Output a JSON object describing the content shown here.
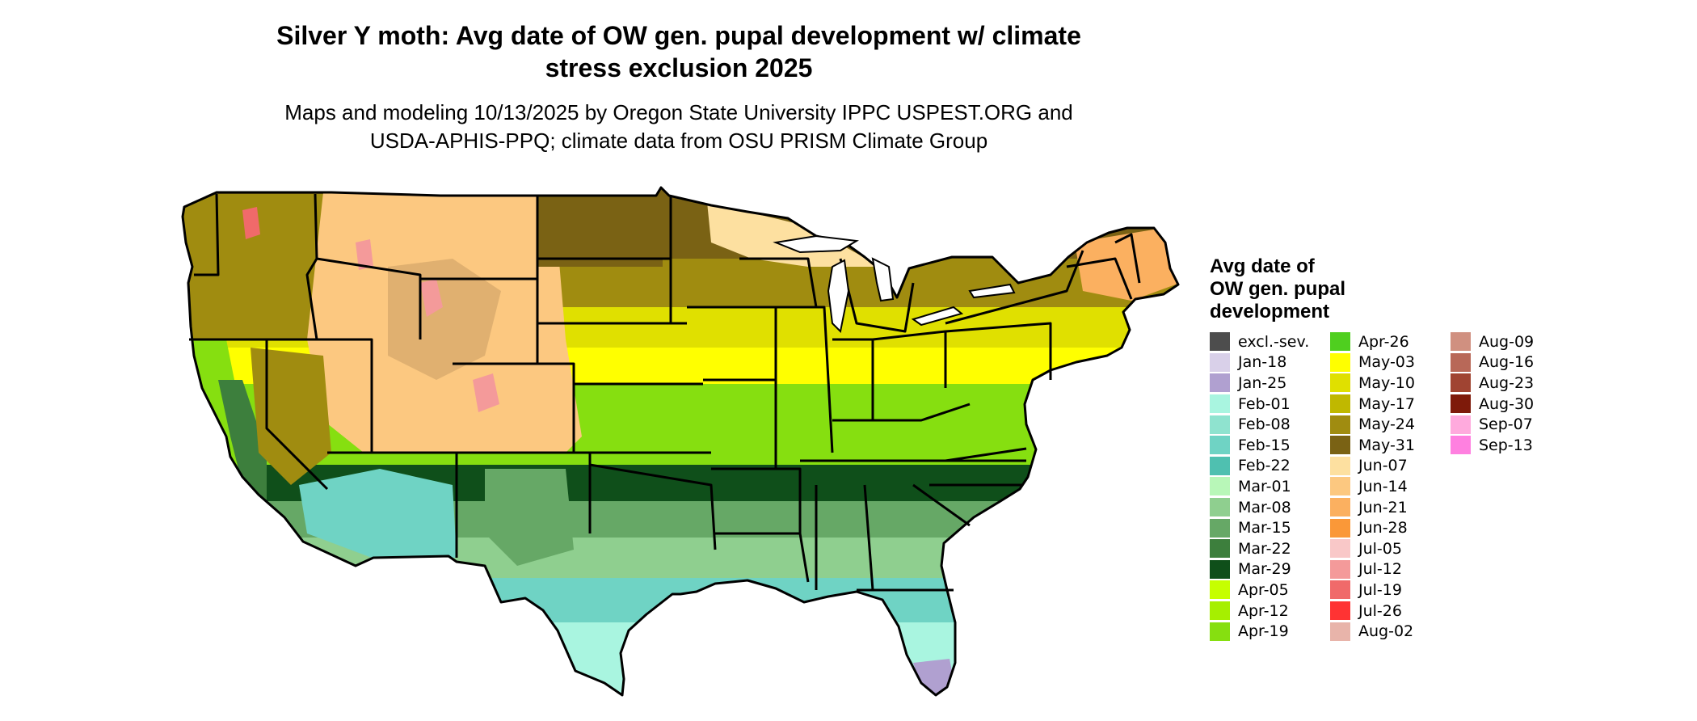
{
  "title_line1": "Silver Y moth: Avg date of OW gen. pupal development w/ climate",
  "title_line2": "stress exclusion 2025",
  "subtitle_line1": "Maps and modeling 10/13/2025 by Oregon State University IPPC USPEST.ORG and",
  "subtitle_line2": "USDA-APHIS-PPQ; climate data from OSU PRISM Climate Group",
  "legend": {
    "title_line1": "Avg date of",
    "title_line2": "OW gen. pupal",
    "title_line3": "development",
    "items": [
      {
        "label": "excl.-sev.",
        "color": "#4d4d4d"
      },
      {
        "label": "Jan-18",
        "color": "#d9d0e9"
      },
      {
        "label": "Jan-25",
        "color": "#b0a0d0"
      },
      {
        "label": "Feb-01",
        "color": "#a9f5e0"
      },
      {
        "label": "Feb-08",
        "color": "#8fe3cf"
      },
      {
        "label": "Feb-15",
        "color": "#6fd3c4"
      },
      {
        "label": "Feb-22",
        "color": "#4fc0b0"
      },
      {
        "label": "Mar-01",
        "color": "#b8f7b8"
      },
      {
        "label": "Mar-08",
        "color": "#8fcf8f"
      },
      {
        "label": "Mar-15",
        "color": "#66a866"
      },
      {
        "label": "Mar-22",
        "color": "#3d7f3d"
      },
      {
        "label": "Mar-29",
        "color": "#0f4f1a"
      },
      {
        "label": "Apr-05",
        "color": "#c6ff00"
      },
      {
        "label": "Apr-12",
        "color": "#a6ef00"
      },
      {
        "label": "Apr-19",
        "color": "#86df10"
      },
      {
        "label": "Apr-26",
        "color": "#4fcf1f"
      },
      {
        "label": "May-03",
        "color": "#ffff00"
      },
      {
        "label": "May-10",
        "color": "#e0e000"
      },
      {
        "label": "May-17",
        "color": "#c0b800"
      },
      {
        "label": "May-24",
        "color": "#a08c10"
      },
      {
        "label": "May-31",
        "color": "#7a6214"
      },
      {
        "label": "Jun-07",
        "color": "#fde0a0"
      },
      {
        "label": "Jun-14",
        "color": "#fcc880"
      },
      {
        "label": "Jun-21",
        "color": "#fbb060"
      },
      {
        "label": "Jun-28",
        "color": "#fa9838"
      },
      {
        "label": "Jul-05",
        "color": "#f9c8c8"
      },
      {
        "label": "Jul-12",
        "color": "#f49a9a"
      },
      {
        "label": "Jul-19",
        "color": "#f06a6a"
      },
      {
        "label": "Jul-26",
        "color": "#ff3333"
      },
      {
        "label": "Aug-02",
        "color": "#e8b4aa"
      },
      {
        "label": "Aug-09",
        "color": "#d09080"
      },
      {
        "label": "Aug-16",
        "color": "#b86858"
      },
      {
        "label": "Aug-23",
        "color": "#a04432"
      },
      {
        "label": "Aug-30",
        "color": "#7e1a0a"
      },
      {
        "label": "Sep-07",
        "color": "#ffaadd"
      },
      {
        "label": "Sep-13",
        "color": "#ff80e0"
      }
    ]
  },
  "map_bands": [
    {
      "name": "far-north",
      "date": "May-31",
      "color": "#7a6214"
    },
    {
      "name": "north",
      "date": "May-24",
      "color": "#a08c10"
    },
    {
      "name": "upper-middle",
      "date": "May-10",
      "color": "#e0e000"
    },
    {
      "name": "middle",
      "date": "May-03",
      "color": "#ffff00"
    },
    {
      "name": "lower-middle",
      "date": "Apr-19",
      "color": "#86df10"
    },
    {
      "name": "south-upper",
      "date": "Mar-29",
      "color": "#0f4f1a"
    },
    {
      "name": "south",
      "date": "Mar-15",
      "color": "#66a866"
    },
    {
      "name": "south-lower",
      "date": "Mar-08",
      "color": "#8fcf8f"
    },
    {
      "name": "gulf",
      "date": "Feb-15",
      "color": "#6fd3c4"
    },
    {
      "name": "florida",
      "date": "Feb-01",
      "color": "#a9f5e0"
    }
  ],
  "map_regions": {
    "mountain_west": {
      "date": "Jun-14",
      "color": "#fcc880"
    },
    "high_peaks": {
      "date": "Jul-12",
      "color": "#f49a9a"
    },
    "pacific_northwest": {
      "date": "May-24",
      "color": "#a08c10"
    },
    "california_coast": {
      "date": "Apr-19",
      "color": "#86df10"
    },
    "california_valley": {
      "date": "Mar-22",
      "color": "#3d7f3d"
    },
    "desert_southwest": {
      "date": "Feb-15",
      "color": "#6fd3c4"
    },
    "great_lakes_north": {
      "date": "Jun-07",
      "color": "#fde0a0"
    },
    "south_florida": {
      "date": "Jan-25",
      "color": "#b0a0d0"
    },
    "new_england": {
      "date": "Jun-21",
      "color": "#fbb060"
    }
  }
}
